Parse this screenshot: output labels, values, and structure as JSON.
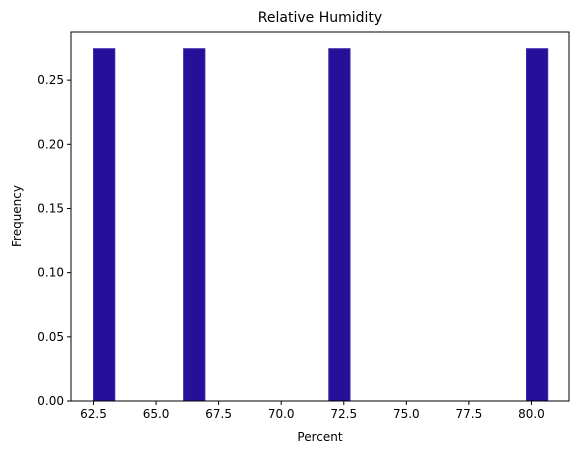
{
  "chart_data": {
    "type": "bar",
    "title": "Relative Humidity",
    "xlabel": "Percent",
    "ylabel": "Frequency",
    "xlim": [
      61.6,
      81.5
    ],
    "ylim": [
      0,
      0.2875
    ],
    "bar_color": "#26109a",
    "bar_edge_color": "#3a2aa8",
    "bars": [
      {
        "x_start": 62.5,
        "x_end": 63.35,
        "value": 0.2745
      },
      {
        "x_start": 66.1,
        "x_end": 66.95,
        "value": 0.2745
      },
      {
        "x_start": 71.9,
        "x_end": 72.75,
        "value": 0.2745
      },
      {
        "x_start": 79.8,
        "x_end": 80.65,
        "value": 0.2745
      }
    ],
    "x_ticks": [
      {
        "value": 62.5,
        "label": "62.5"
      },
      {
        "value": 65.0,
        "label": "65.0"
      },
      {
        "value": 67.5,
        "label": "67.5"
      },
      {
        "value": 70.0,
        "label": "70.0"
      },
      {
        "value": 72.5,
        "label": "72.5"
      },
      {
        "value": 75.0,
        "label": "75.0"
      },
      {
        "value": 77.5,
        "label": "77.5"
      },
      {
        "value": 80.0,
        "label": "80.0"
      }
    ],
    "y_ticks": [
      {
        "value": 0.0,
        "label": "0.00"
      },
      {
        "value": 0.05,
        "label": "0.05"
      },
      {
        "value": 0.1,
        "label": "0.10"
      },
      {
        "value": 0.15,
        "label": "0.15"
      },
      {
        "value": 0.2,
        "label": "0.20"
      },
      {
        "value": 0.25,
        "label": "0.25"
      }
    ],
    "grid": false,
    "legend": "none"
  }
}
